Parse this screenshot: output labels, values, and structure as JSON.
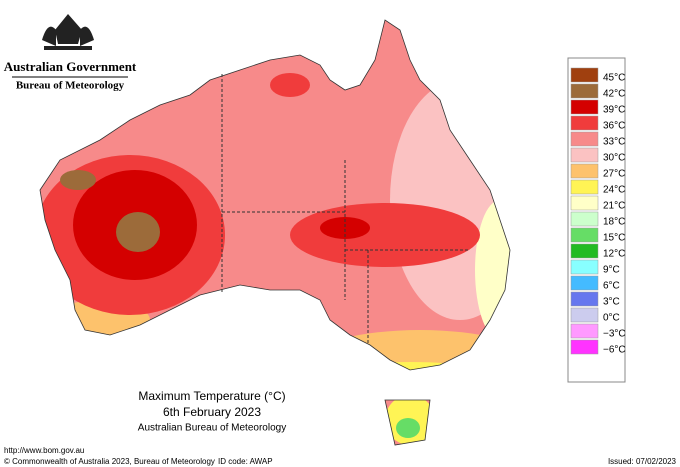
{
  "header": {
    "agency": "Australian Government",
    "bureau": "Bureau of Meteorology"
  },
  "legend": {
    "items": [
      {
        "label": "45°C",
        "color": "#a0400f"
      },
      {
        "label": "42°C",
        "color": "#9c6b3a"
      },
      {
        "label": "39°C",
        "color": "#d40000"
      },
      {
        "label": "36°C",
        "color": "#f03c3c"
      },
      {
        "label": "33°C",
        "color": "#f78a8a"
      },
      {
        "label": "30°C",
        "color": "#fbc2c2"
      },
      {
        "label": "27°C",
        "color": "#fdc26c"
      },
      {
        "label": "24°C",
        "color": "#fff455"
      },
      {
        "label": "21°C",
        "color": "#ffffc8"
      },
      {
        "label": "18°C",
        "color": "#ccffcc"
      },
      {
        "label": "15°C",
        "color": "#66dd66"
      },
      {
        "label": "12°C",
        "color": "#22bb22"
      },
      {
        "label": "9°C",
        "color": "#88ffff"
      },
      {
        "label": "6°C",
        "color": "#44bbff"
      },
      {
        "label": "3°C",
        "color": "#6677ee"
      },
      {
        "label": "0°C",
        "color": "#ccccee"
      },
      {
        "label": "−3°C",
        "color": "#ff99ff"
      },
      {
        "label": "−6°C",
        "color": "#ff33ff"
      }
    ]
  },
  "caption": {
    "title": "Maximum Temperature (°C)",
    "date": "6th February 2023",
    "source": "Australian Bureau of Meteorology"
  },
  "footer": {
    "url": "http://www.bom.gov.au",
    "copyright": "© Commonwealth of Australia 2023, Bureau of Meteorology",
    "id_code": "ID code: AWAP",
    "issued": "Issued: 07/02/2023"
  }
}
